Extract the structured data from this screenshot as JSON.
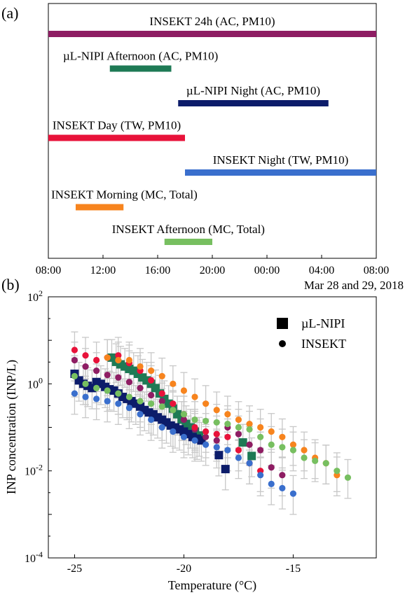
{
  "panel_a": {
    "panel_label": "(a)",
    "date_caption": "Mar 28 and 29, 2018",
    "chart_data": {
      "type": "timeline",
      "x_range_hours": [
        8,
        32
      ],
      "x_ticks": [
        "08:00",
        "12:00",
        "16:00",
        "20:00",
        "00:00",
        "04:00",
        "08:00"
      ],
      "bars": [
        {
          "label": "INSEKT 24h (AC, PM10)",
          "start": 8.0,
          "end": 32.0,
          "color": "#8e1d63"
        },
        {
          "label": "µL-NIPI Afternoon (AC, PM10)",
          "start": 12.5,
          "end": 17.0,
          "color": "#1e7a55"
        },
        {
          "label": "µL-NIPI Night (AC, PM10)",
          "start": 17.5,
          "end": 28.5,
          "color": "#0c1c6a"
        },
        {
          "label": "INSEKT Day (TW, PM10)",
          "start": 8.0,
          "end": 18.0,
          "color": "#e8123a"
        },
        {
          "label": "INSEKT Night (TW, PM10)",
          "start": 18.0,
          "end": 32.0,
          "color": "#3a6fcd"
        },
        {
          "label": "INSEKT Morning (MC, Total)",
          "start": 10.0,
          "end": 13.5,
          "color": "#f7841e"
        },
        {
          "label": "INSEKT Afternoon (MC, Total)",
          "start": 16.5,
          "end": 20.0,
          "color": "#77bf60"
        }
      ]
    }
  },
  "panel_b": {
    "panel_label": "(b)",
    "chart_data": {
      "type": "scatter",
      "xlabel": "Temperature (°C)",
      "ylabel": "INP concentration (INP/L)",
      "xlim": [
        -26.2,
        -11.2
      ],
      "y_log10_lim": [
        -4,
        2
      ],
      "y_scale": "log",
      "x_ticks": [
        "-25",
        "-20",
        "-15"
      ],
      "x_tick_values": [
        -25,
        -20,
        -15
      ],
      "y_tick_base": "10",
      "y_tick_exps": [
        "-4",
        "-2",
        "0",
        "2"
      ],
      "legend": [
        {
          "label": "µL-NIPI",
          "marker": "square"
        },
        {
          "label": "INSEKT",
          "marker": "circle"
        }
      ],
      "legend_position": "top-right",
      "series": [
        {
          "instrument": "INSEKT",
          "period": "24h",
          "color": "#8e1d63",
          "marker": "circle",
          "points": [
            [
              -25,
              3.5
            ],
            [
              -24.5,
              2.5
            ],
            [
              -24,
              2
            ],
            [
              -23.5,
              1.6
            ],
            [
              -23,
              1.4
            ],
            [
              -22.5,
              1.1
            ],
            [
              -22,
              0.8
            ],
            [
              -21.5,
              0.55
            ],
            [
              -21,
              0.4
            ],
            [
              -20.5,
              0.25
            ],
            [
              -20,
              0.15
            ],
            [
              -19.5,
              0.09
            ],
            [
              -19,
              0.06
            ],
            [
              -18.5,
              0.05
            ],
            [
              -18,
              0.1
            ],
            [
              -17.5,
              0.07
            ],
            [
              -17,
              0.04
            ],
            [
              -16.5,
              0.03
            ],
            [
              -16,
              0.012
            ],
            [
              -15.5,
              0.008
            ]
          ]
        },
        {
          "instrument": "INSEKT",
          "period": "Day",
          "color": "#e8123a",
          "marker": "circle",
          "points": [
            [
              -25,
              6
            ],
            [
              -24.5,
              4.5
            ],
            [
              -24,
              3.5
            ],
            [
              -23.5,
              4
            ],
            [
              -23,
              4.5
            ],
            [
              -22.5,
              3
            ],
            [
              -22,
              2
            ],
            [
              -21.5,
              1.2
            ],
            [
              -21,
              0.6
            ],
            [
              -20.5,
              0.35
            ],
            [
              -20,
              0.2
            ],
            [
              -19.5,
              0.1
            ],
            [
              -19,
              0.08
            ],
            [
              -18.5,
              0.07
            ],
            [
              -18,
              0.06
            ],
            [
              -17.5,
              0.03
            ],
            [
              -17,
              0.015
            ],
            [
              -16.5,
              0.01
            ]
          ]
        },
        {
          "instrument": "INSEKT",
          "period": "Night",
          "color": "#3a6fcd",
          "marker": "circle",
          "points": [
            [
              -25,
              0.6
            ],
            [
              -24.5,
              0.5
            ],
            [
              -24,
              0.45
            ],
            [
              -23.5,
              0.4
            ],
            [
              -23,
              0.35
            ],
            [
              -22.5,
              0.28
            ],
            [
              -22,
              0.2
            ],
            [
              -21.5,
              0.15
            ],
            [
              -21,
              0.1
            ],
            [
              -20.5,
              0.08
            ],
            [
              -20,
              0.06
            ],
            [
              -19.5,
              0.05
            ],
            [
              -19,
              0.04
            ],
            [
              -18.5,
              0.035
            ],
            [
              -18,
              0.03
            ],
            [
              -17.5,
              0.02
            ],
            [
              -17,
              0.015
            ],
            [
              -16.5,
              0.008
            ],
            [
              -16,
              0.005
            ],
            [
              -15.5,
              0.004
            ],
            [
              -15,
              0.003
            ]
          ]
        },
        {
          "instrument": "INSEKT",
          "period": "Morning",
          "color": "#f7841e",
          "marker": "circle",
          "points": [
            [
              -23.5,
              4
            ],
            [
              -23,
              3.5
            ],
            [
              -22.5,
              3.5
            ],
            [
              -22,
              2.5
            ],
            [
              -21.5,
              2
            ],
            [
              -21,
              1.5
            ],
            [
              -20.5,
              1
            ],
            [
              -20,
              0.7
            ],
            [
              -19.5,
              0.5
            ],
            [
              -19,
              0.35
            ],
            [
              -18.5,
              0.25
            ],
            [
              -18,
              0.2
            ],
            [
              -17.5,
              0.15
            ],
            [
              -17,
              0.12
            ],
            [
              -16.5,
              0.1
            ],
            [
              -16,
              0.08
            ],
            [
              -15.5,
              0.06
            ],
            [
              -15,
              0.04
            ],
            [
              -14.5,
              0.03
            ],
            [
              -14,
              0.02
            ],
            [
              -13.5,
              0.015
            ],
            [
              -13,
              0.008
            ]
          ]
        },
        {
          "instrument": "INSEKT",
          "period": "Afternoon",
          "color": "#77bf60",
          "marker": "circle",
          "points": [
            [
              -25,
              1.5
            ],
            [
              -24.5,
              1
            ],
            [
              -24,
              0.8
            ],
            [
              -23.5,
              0.7
            ],
            [
              -23,
              0.6
            ],
            [
              -22.5,
              0.5
            ],
            [
              -22,
              0.4
            ],
            [
              -21.5,
              0.35
            ],
            [
              -21,
              0.3
            ],
            [
              -20.5,
              0.25
            ],
            [
              -20,
              0.2
            ],
            [
              -19.5,
              0.15
            ],
            [
              -19,
              0.14
            ],
            [
              -18.5,
              0.13
            ],
            [
              -18,
              0.12
            ],
            [
              -17.5,
              0.1
            ],
            [
              -17,
              0.09
            ],
            [
              -16.5,
              0.06
            ],
            [
              -16,
              0.04
            ],
            [
              -15.5,
              0.035
            ],
            [
              -15,
              0.03
            ],
            [
              -14.5,
              0.02
            ],
            [
              -14,
              0.017
            ],
            [
              -13.5,
              0.015
            ],
            [
              -13,
              0.01
            ],
            [
              -12.5,
              0.007
            ]
          ]
        },
        {
          "instrument": "µL-NIPI",
          "period": "Afternoon",
          "color": "#1e7a55",
          "marker": "square",
          "points": [
            [
              -23.3,
              4
            ],
            [
              -23.1,
              3.2
            ],
            [
              -22.9,
              2.8
            ],
            [
              -22.7,
              2.5
            ],
            [
              -22.5,
              2.2
            ],
            [
              -22.3,
              2
            ],
            [
              -22.1,
              1.7
            ],
            [
              -21.9,
              1.4
            ],
            [
              -21.7,
              1.2
            ],
            [
              -21.5,
              1
            ],
            [
              -21.3,
              0.8
            ],
            [
              -21.1,
              0.6
            ],
            [
              -20.9,
              0.45
            ],
            [
              -20.7,
              0.35
            ],
            [
              -20.5,
              0.27
            ],
            [
              -20.3,
              0.2
            ],
            [
              -20.1,
              0.15
            ],
            [
              -19.9,
              0.12
            ],
            [
              -19.7,
              0.1
            ],
            [
              -19.5,
              0.08
            ],
            [
              -19.3,
              0.065
            ],
            [
              -17.3,
              0.045
            ],
            [
              -16.9,
              0.022
            ]
          ]
        },
        {
          "instrument": "µL-NIPI",
          "period": "Night",
          "color": "#0c1c6a",
          "marker": "square",
          "points": [
            [
              -25,
              1.7
            ],
            [
              -24.8,
              1.2
            ],
            [
              -24.6,
              1
            ],
            [
              -24.4,
              0.9
            ],
            [
              -24.2,
              0.8
            ],
            [
              -24,
              1.1
            ],
            [
              -23.8,
              1
            ],
            [
              -23.6,
              0.85
            ],
            [
              -23.4,
              0.75
            ],
            [
              -23.2,
              0.7
            ],
            [
              -23,
              0.6
            ],
            [
              -22.8,
              0.5
            ],
            [
              -22.6,
              0.45
            ],
            [
              -22.4,
              0.4
            ],
            [
              -22.2,
              0.35
            ],
            [
              -22,
              0.3
            ],
            [
              -21.8,
              0.25
            ],
            [
              -21.6,
              0.22
            ],
            [
              -21.4,
              0.2
            ],
            [
              -21.2,
              0.17
            ],
            [
              -21,
              0.15
            ],
            [
              -20.8,
              0.13
            ],
            [
              -20.6,
              0.11
            ],
            [
              -20.4,
              0.1
            ],
            [
              -20.2,
              0.09
            ],
            [
              -20,
              0.08
            ],
            [
              -19.8,
              0.07
            ],
            [
              -19.6,
              0.06
            ],
            [
              -19.4,
              0.055
            ],
            [
              -19.2,
              0.05
            ],
            [
              -18.4,
              0.023
            ],
            [
              -18.1,
              0.011
            ]
          ]
        }
      ]
    }
  }
}
